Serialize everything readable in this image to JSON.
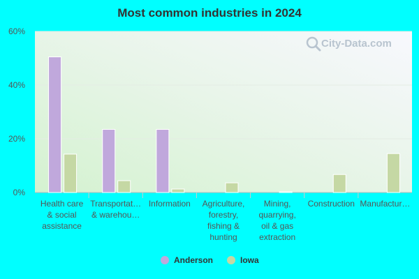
{
  "chart_data": {
    "type": "bar",
    "title": "Most common industries in 2024",
    "categories": [
      [
        "Health care",
        "& social",
        "assistance"
      ],
      [
        "Transportat…",
        "& warehou…"
      ],
      [
        "Information"
      ],
      [
        "Agriculture,",
        "forestry,",
        "fishing &",
        "hunting"
      ],
      [
        "Mining,",
        "quarrying,",
        "oil & gas",
        "extraction"
      ],
      [
        "Construction"
      ],
      [
        "Manufactur…"
      ]
    ],
    "series": [
      {
        "name": "Anderson",
        "color": "#c0a8dc",
        "values": [
          50.5,
          23.5,
          23.5,
          0,
          0,
          0,
          0
        ]
      },
      {
        "name": "Iowa",
        "color": "#c5d8a4",
        "values": [
          14.3,
          4.4,
          1.3,
          3.6,
          0.3,
          6.7,
          14.5
        ]
      }
    ],
    "yticks": [
      "0%",
      "20%",
      "40%",
      "60%"
    ],
    "ylim": [
      0,
      60
    ],
    "legend_position": "bottom-center",
    "grid": true
  },
  "watermark": {
    "text": "City-Data.com",
    "icon": "magnifier-icon"
  }
}
